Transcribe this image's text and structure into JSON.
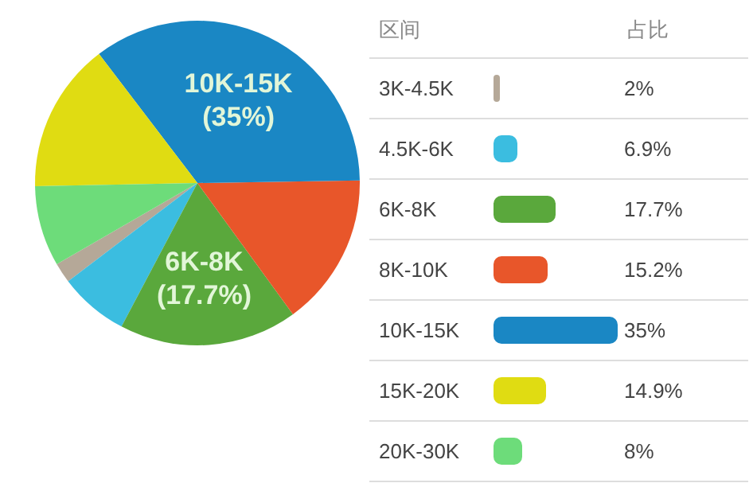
{
  "chart_data": {
    "type": "pie",
    "categories": [
      "3K-4.5K",
      "4.5K-6K",
      "6K-8K",
      "8K-10K",
      "10K-15K",
      "15K-20K",
      "20K-30K"
    ],
    "values": [
      2,
      6.9,
      17.7,
      15.2,
      35,
      14.9,
      8
    ],
    "colors": [
      "#b5a898",
      "#3bbde0",
      "#5aa83c",
      "#e8562a",
      "#1a87c4",
      "#e0dc12",
      "#6ddc7a"
    ],
    "value_labels": [
      null,
      null,
      "(17.7%)",
      null,
      "(35%)",
      null,
      null
    ],
    "annotations": [
      "区间",
      "占比",
      "2%",
      "6.9%",
      "17.7%",
      "15.2%",
      "35%",
      "14.9%",
      "8%"
    ],
    "legend": "right"
  }
}
